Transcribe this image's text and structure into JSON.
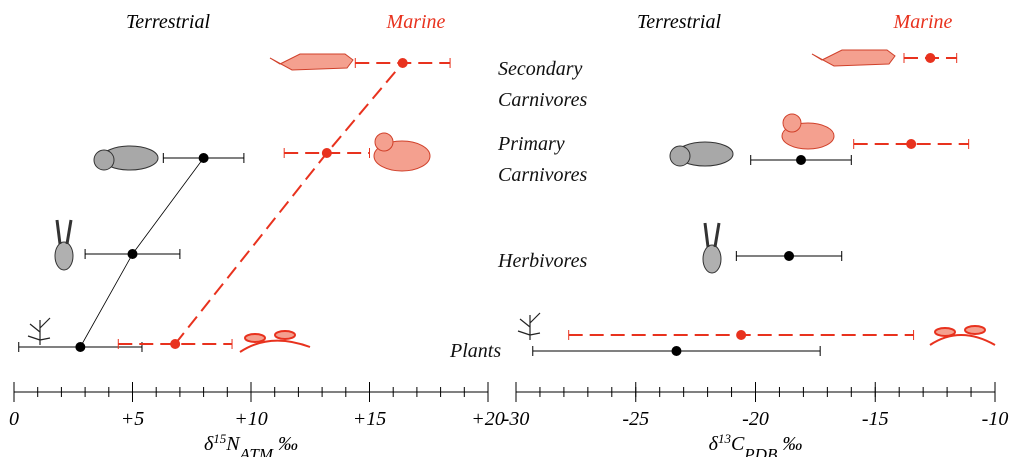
{
  "categories": [
    "Plants",
    "Herbivores",
    "Primary Carnivores",
    "Secondary Carnivores"
  ],
  "chart_data": [
    {
      "type": "errorbar",
      "connect": true,
      "xlabel": [
        "δ",
        "15",
        "N",
        "ATM",
        " ‰"
      ],
      "xlim": [
        0,
        20
      ],
      "xticks": [
        0,
        {
          "value": 5,
          "label": "+5"
        },
        {
          "value": 10,
          "label": "+10"
        },
        {
          "value": 15,
          "label": "+15"
        },
        {
          "value": 20,
          "label": "+20"
        }
      ],
      "xminorticks": [
        0,
        1,
        2,
        3,
        4,
        5,
        6,
        7,
        8,
        9,
        10,
        11,
        12,
        13,
        14,
        15,
        16,
        17,
        18,
        19,
        20
      ],
      "series": [
        {
          "name": "Terrestrial",
          "color": "#000000",
          "dashed": false,
          "values": [
            2.8,
            5.0,
            8.0,
            null
          ],
          "errors": [
            2.6,
            2.0,
            1.7,
            null
          ]
        },
        {
          "name": "Marine",
          "color": "#e8321e",
          "dashed": true,
          "values": [
            6.8,
            null,
            13.2,
            16.4
          ],
          "errors": [
            2.4,
            null,
            1.8,
            2.0
          ]
        }
      ]
    },
    {
      "type": "errorbar",
      "connect": false,
      "xlabel": [
        "δ",
        "13",
        "C",
        "PDB",
        " ‰"
      ],
      "xlim": [
        -30,
        -10
      ],
      "xticks": [
        -30,
        -25,
        -20,
        -15,
        -10
      ],
      "xminorticks": [
        -30,
        -29,
        -28,
        -27,
        -26,
        -25,
        -24,
        -23,
        -22,
        -21,
        -20,
        -19,
        -18,
        -17,
        -16,
        -15,
        -14,
        -13,
        -12,
        -11,
        -10
      ],
      "series": [
        {
          "name": "Terrestrial",
          "color": "#000000",
          "dashed": false,
          "values": [
            -23.3,
            -18.6,
            -18.1,
            null
          ],
          "errors": [
            6.0,
            2.2,
            2.1,
            null
          ]
        },
        {
          "name": "Marine",
          "color": "#e8321e",
          "dashed": true,
          "values": [
            -20.6,
            null,
            -13.5,
            -12.7
          ],
          "errors": [
            7.2,
            null,
            2.4,
            1.1
          ]
        }
      ]
    }
  ]
}
